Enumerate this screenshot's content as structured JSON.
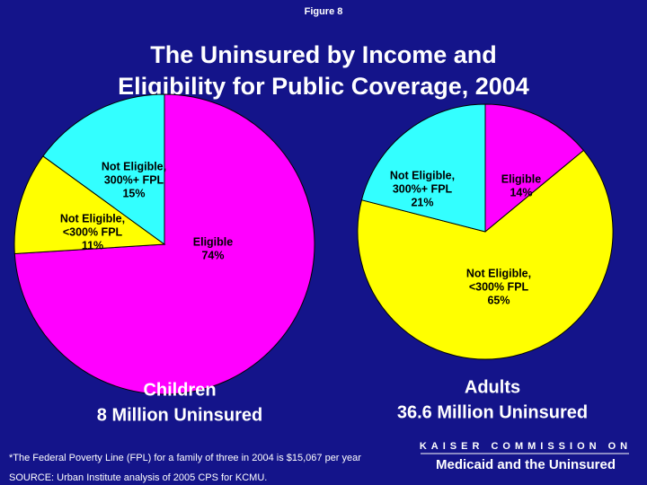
{
  "figure_label": "Figure 8",
  "title": [
    "The Uninsured by Income and",
    "Eligibility for Public Coverage, 2004"
  ],
  "footnote": "*The Federal Poverty Line (FPL) for a family of three in 2004 is $15,067 per year",
  "source": "SOURCE:  Urban Institute analysis of 2005 CPS for KCMU.",
  "logo": {
    "line1": "KAISER COMMISSION ON",
    "line2": "Medicaid and the Uninsured"
  },
  "chart_data": [
    {
      "type": "pie",
      "title": "Children",
      "subtitle": "8 Million Uninsured",
      "categories": [
        [
          "Eligible"
        ],
        [
          "Not Eligible,",
          "<300% FPL"
        ],
        [
          "Not Eligible,",
          "300%+ FPL"
        ]
      ],
      "values": [
        74,
        11,
        15
      ],
      "value_labels": [
        "74%",
        "11%",
        "15%"
      ],
      "colors": [
        "#ff00ff",
        "#ffff00",
        "#33ffff"
      ]
    },
    {
      "type": "pie",
      "title": "Adults",
      "subtitle": "36.6 Million Uninsured",
      "categories": [
        [
          "Eligible"
        ],
        [
          "Not Eligible,",
          "<300% FPL"
        ],
        [
          "Not Eligible,",
          "300%+ FPL"
        ]
      ],
      "values": [
        14,
        65,
        21
      ],
      "value_labels": [
        "14%",
        "65%",
        "21%"
      ],
      "colors": [
        "#ff00ff",
        "#ffff00",
        "#33ffff"
      ]
    }
  ]
}
